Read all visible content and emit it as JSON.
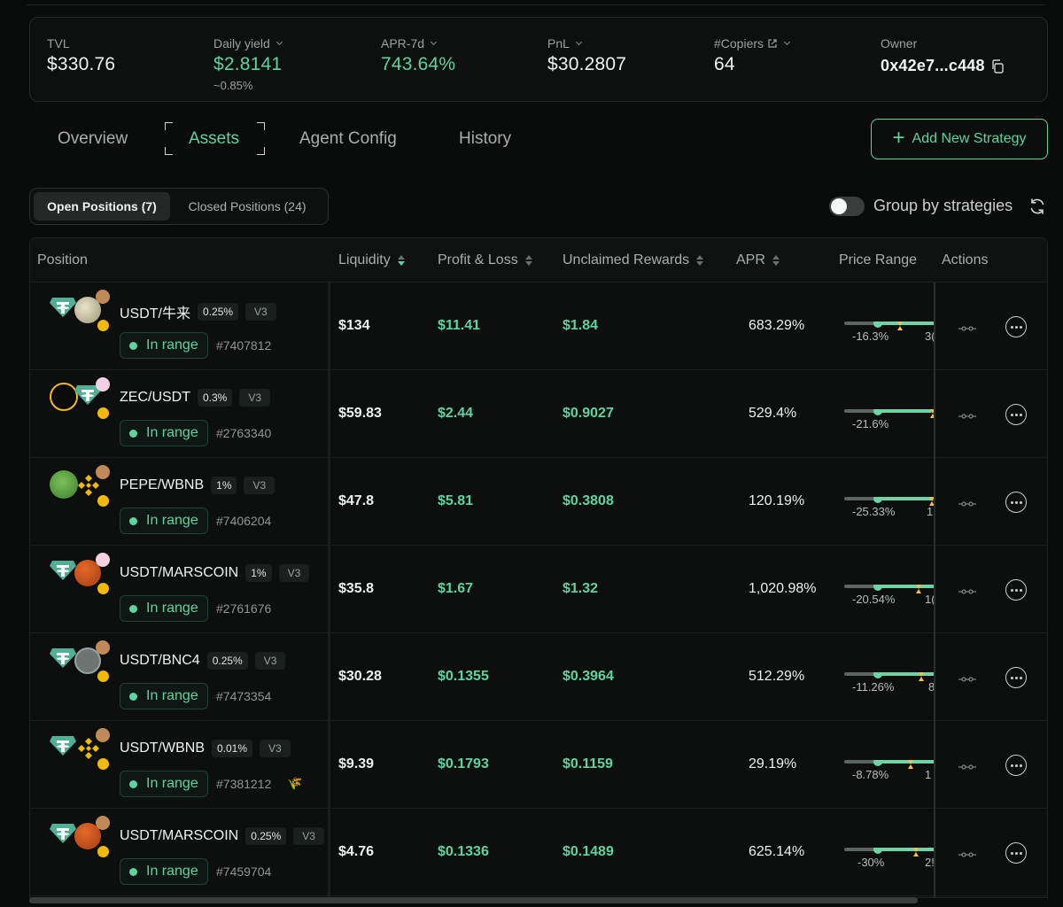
{
  "stats": {
    "tvl": {
      "label": "TVL",
      "value": "$330.76"
    },
    "daily_yield": {
      "label": "Daily yield",
      "value": "$2.8141",
      "sub": "~0.85%"
    },
    "apr7d": {
      "label": "APR-7d",
      "value": "743.64%"
    },
    "pnl": {
      "label": "PnL",
      "value": "$30.2807"
    },
    "copiers": {
      "label": "#Copiers",
      "value": "64"
    },
    "owner": {
      "label": "Owner",
      "value": "0x42e7...c448"
    }
  },
  "tabs": [
    "Overview",
    "Assets",
    "Agent Config",
    "History"
  ],
  "active_tab": "Assets",
  "add_button": "Add New Strategy",
  "segments": {
    "open": "Open Positions (7)",
    "closed": "Closed Positions (24)"
  },
  "group_label": "Group by strategies",
  "columns": {
    "position": "Position",
    "liquidity": "Liquidity",
    "pnl": "Profit & Loss",
    "rewards": "Unclaimed Rewards",
    "apr": "APR",
    "range": "Price Range",
    "actions": "Actions"
  },
  "status_label": "In range",
  "version_label": "V3",
  "rows": [
    {
      "pair": "USDT/牛来",
      "fee": "0.25%",
      "id": "#7407812",
      "liquidity": "$134",
      "pnl": "$11.41",
      "rewards": "$1.84",
      "apr": "683.29%",
      "low": "-16.3%",
      "high": "3("
    },
    {
      "pair": "ZEC/USDT",
      "fee": "0.3%",
      "id": "#2763340",
      "liquidity": "$59.83",
      "pnl": "$2.44",
      "rewards": "$0.9027",
      "apr": "529.4%",
      "low": "-21.6%",
      "high": ""
    },
    {
      "pair": "PEPE/WBNB",
      "fee": "1%",
      "id": "#7406204",
      "liquidity": "$47.8",
      "pnl": "$5.81",
      "rewards": "$0.3808",
      "apr": "120.19%",
      "low": "-25.33%",
      "high": "1"
    },
    {
      "pair": "USDT/MARSCOIN",
      "fee": "1%",
      "id": "#2761676",
      "liquidity": "$35.8",
      "pnl": "$1.67",
      "rewards": "$1.32",
      "apr": "1,020.98%",
      "low": "-20.54%",
      "high": "1("
    },
    {
      "pair": "USDT/BNC4",
      "fee": "0.25%",
      "id": "#7473354",
      "liquidity": "$30.28",
      "pnl": "$0.1355",
      "rewards": "$0.3964",
      "apr": "512.29%",
      "low": "-11.26%",
      "high": "8"
    },
    {
      "pair": "USDT/WBNB",
      "fee": "0.01%",
      "id": "#7381212",
      "liquidity": "$9.39",
      "pnl": "$0.1793",
      "rewards": "$0.1159",
      "apr": "29.19%",
      "low": "-8.78%",
      "high": "1"
    },
    {
      "pair": "USDT/MARSCOIN",
      "fee": "0.25%",
      "id": "#7459704",
      "liquidity": "$4.76",
      "pnl": "$0.1336",
      "rewards": "$0.1489",
      "apr": "625.14%",
      "low": "-30%",
      "high": "2!"
    }
  ],
  "icons": {
    "tether": "tether-icon",
    "pancake": "pancakeswap-icon",
    "bnb": "bnb-icon",
    "zec": "zcash-icon",
    "pepe": "pepe-icon",
    "mars": "marscoin-icon",
    "uni": "uniswap-icon"
  },
  "colors": {
    "accent": "#5fd3a0",
    "background": "#0a0c0b",
    "muted": "#a7afac"
  }
}
